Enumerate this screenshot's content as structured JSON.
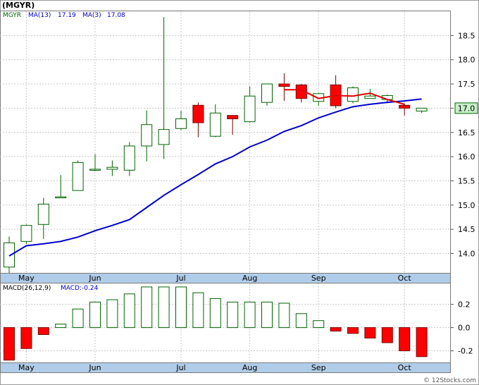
{
  "ticker_title": "(MGYR)",
  "watermark": "© 12Stocks.com",
  "price_panel": {
    "legend": {
      "symbol": "MGYR",
      "ma13_label": "MA(13)",
      "ma13_value": "17.19",
      "ma3_label": "MA(3)",
      "ma3_value": "17.08"
    },
    "current_price_label": "17.0",
    "current_price": 17.0,
    "ylim": [
      13.6,
      19.0
    ],
    "yticks": [
      14.0,
      14.5,
      15.0,
      15.5,
      16.0,
      16.5,
      17.0,
      17.5,
      18.0,
      18.5
    ],
    "months": [
      {
        "label": "May",
        "week": 1.0
      },
      {
        "label": "Jun",
        "week": 5.0
      },
      {
        "label": "Jul",
        "week": 10.0
      },
      {
        "label": "Aug",
        "week": 14.0
      },
      {
        "label": "Sep",
        "week": 18.0
      },
      {
        "label": "Oct",
        "week": 23.0
      }
    ]
  },
  "macd_panel": {
    "legend": {
      "label": "MACD(26,12,9)",
      "value_label": "MACD:-0.24"
    },
    "ylim": [
      -0.3,
      0.38
    ],
    "yticks": [
      -0.2,
      0.0,
      0.2
    ]
  },
  "colors": {
    "up": "#006400",
    "down": "#ff0000",
    "ma13": "#0000cc",
    "ma3": "#e00000",
    "grid": "#c8c8c8",
    "axis_band": "#b0cce8",
    "price_box": "#c8f0c8"
  },
  "chart_data": {
    "type": "candlestick",
    "x_unit": "week",
    "candles": [
      {
        "open": 13.72,
        "high": 14.35,
        "low": 13.6,
        "close": 14.22
      },
      {
        "open": 14.25,
        "high": 14.6,
        "low": 14.2,
        "close": 14.58
      },
      {
        "open": 14.6,
        "high": 15.15,
        "low": 14.3,
        "close": 15.02
      },
      {
        "open": 15.17,
        "high": 15.62,
        "low": 15.15,
        "close": 15.17
      },
      {
        "open": 15.3,
        "high": 15.92,
        "low": 15.3,
        "close": 15.88
      },
      {
        "open": 15.74,
        "high": 16.05,
        "low": 15.7,
        "close": 15.74
      },
      {
        "open": 15.74,
        "high": 15.92,
        "low": 15.6,
        "close": 15.78
      },
      {
        "open": 15.72,
        "high": 16.3,
        "low": 15.6,
        "close": 16.22
      },
      {
        "open": 16.22,
        "high": 16.95,
        "low": 15.9,
        "close": 16.66
      },
      {
        "open": 16.25,
        "high": 18.88,
        "low": 15.95,
        "close": 16.56
      },
      {
        "open": 16.58,
        "high": 16.95,
        "low": 16.55,
        "close": 16.78
      },
      {
        "open": 17.06,
        "high": 17.12,
        "low": 16.4,
        "close": 16.7
      },
      {
        "open": 16.42,
        "high": 17.08,
        "low": 16.4,
        "close": 16.9
      },
      {
        "open": 16.85,
        "high": 16.85,
        "low": 16.45,
        "close": 16.78
      },
      {
        "open": 16.72,
        "high": 17.45,
        "low": 16.7,
        "close": 17.25
      },
      {
        "open": 17.12,
        "high": 17.5,
        "low": 17.05,
        "close": 17.5
      },
      {
        "open": 17.5,
        "high": 17.72,
        "low": 17.15,
        "close": 17.45
      },
      {
        "open": 17.48,
        "high": 17.5,
        "low": 17.12,
        "close": 17.2
      },
      {
        "open": 17.14,
        "high": 17.32,
        "low": 17.05,
        "close": 17.3
      },
      {
        "open": 17.48,
        "high": 17.68,
        "low": 17.0,
        "close": 17.05
      },
      {
        "open": 17.14,
        "high": 17.45,
        "low": 17.1,
        "close": 17.42
      },
      {
        "open": 17.2,
        "high": 17.4,
        "low": 17.2,
        "close": 17.25
      },
      {
        "open": 17.18,
        "high": 17.28,
        "low": 17.1,
        "close": 17.26
      },
      {
        "open": 17.06,
        "high": 17.1,
        "low": 16.85,
        "close": 17.0
      },
      {
        "open": 16.94,
        "high": 17.0,
        "low": 16.9,
        "close": 17.0
      }
    ],
    "ma13": [
      13.95,
      14.16,
      14.2,
      14.25,
      14.34,
      14.47,
      14.58,
      14.7,
      14.95,
      15.2,
      15.42,
      15.63,
      15.85,
      16.0,
      16.2,
      16.34,
      16.52,
      16.64,
      16.8,
      16.92,
      17.03,
      17.08,
      17.12,
      17.15,
      17.19
    ],
    "ma3_start": 16,
    "ma3": [
      17.38,
      17.38,
      17.2,
      17.26,
      17.25,
      17.31,
      17.18,
      17.08
    ],
    "macd": [
      -0.28,
      -0.18,
      -0.06,
      0.03,
      0.16,
      0.22,
      0.24,
      0.29,
      0.35,
      0.35,
      0.35,
      0.3,
      0.25,
      0.22,
      0.22,
      0.22,
      0.21,
      0.12,
      0.06,
      -0.03,
      -0.05,
      -0.09,
      -0.13,
      -0.2,
      -0.25
    ]
  }
}
